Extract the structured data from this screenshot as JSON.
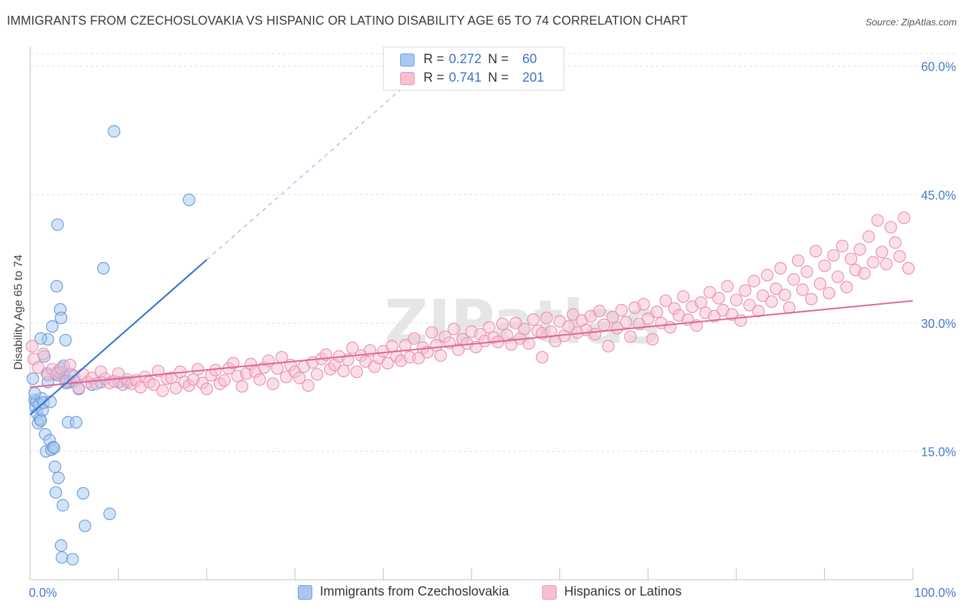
{
  "title": "IMMIGRANTS FROM CZECHOSLOVAKIA VS HISPANIC OR LATINO DISABILITY AGE 65 TO 74 CORRELATION CHART",
  "source": "Source: ZipAtlas.com",
  "watermark": "ZIPatlas",
  "legend": {
    "rows": [
      {
        "r_label": "R =",
        "r_value": "0.272",
        "n_label": "N =",
        "n_value": "60",
        "color": "#a8c8f0",
        "stroke": "#6a9ad8"
      },
      {
        "r_label": "R =",
        "r_value": "0.741",
        "n_label": "N =",
        "n_value": "201",
        "color": "#f8bfd0",
        "stroke": "#e890b0"
      }
    ]
  },
  "bottom_legend": [
    {
      "label": "Immigrants from Czechoslovakia",
      "color": "#a8c8f0",
      "stroke": "#6a9ad8"
    },
    {
      "label": "Hispanics or Latinos",
      "color": "#f8bfd0",
      "stroke": "#e890b0"
    }
  ],
  "chart_data": {
    "type": "scatter",
    "title": "IMMIGRANTS FROM CZECHOSLOVAKIA VS HISPANIC OR LATINO DISABILITY AGE 65 TO 74 CORRELATION CHART",
    "xlabel": "",
    "ylabel": "Disability Age 65 to 74",
    "xlim": [
      0,
      100
    ],
    "ylim": [
      0,
      61.5
    ],
    "x_ticks": [
      {
        "value": 0,
        "label": "0.0%"
      },
      {
        "value": 100,
        "label": "100.0%"
      }
    ],
    "y_ticks": [
      {
        "value": 15,
        "label": "15.0%"
      },
      {
        "value": 30,
        "label": "30.0%"
      },
      {
        "value": 45,
        "label": "45.0%"
      },
      {
        "value": 60,
        "label": "60.0%"
      }
    ],
    "grid": "horizontal dashed",
    "legend_position": "top-center",
    "series": [
      {
        "name": "Immigrants from Czechoslovakia",
        "color": "#a8c8f0",
        "stroke": "#6a9ad8",
        "trend": {
          "x0": 0,
          "y0": 19.3,
          "x1": 20,
          "y1": 37.4,
          "dash_to_x": 45
        },
        "points": [
          [
            0.3,
            23.5
          ],
          [
            0.5,
            21
          ],
          [
            0.6,
            20.2
          ],
          [
            0.7,
            20.8
          ],
          [
            0.8,
            19.4
          ],
          [
            0.9,
            18.3
          ],
          [
            1.0,
            20.5
          ],
          [
            1.1,
            18.8
          ],
          [
            1.2,
            18.6
          ],
          [
            1.3,
            21.2
          ],
          [
            1.4,
            19.8
          ],
          [
            1.5,
            20.7
          ],
          [
            1.6,
            26.1
          ],
          [
            1.7,
            17.0
          ],
          [
            1.8,
            15.0
          ],
          [
            2.0,
            28.1
          ],
          [
            2.0,
            23.1
          ],
          [
            2.2,
            16.3
          ],
          [
            2.3,
            20.8
          ],
          [
            2.4,
            15.2
          ],
          [
            2.5,
            29.6
          ],
          [
            2.6,
            15.5
          ],
          [
            2.7,
            15.4
          ],
          [
            2.8,
            13.2
          ],
          [
            2.9,
            10.2
          ],
          [
            3.0,
            34.3
          ],
          [
            3.1,
            23.9
          ],
          [
            3.1,
            41.5
          ],
          [
            3.2,
            24.4
          ],
          [
            3.2,
            11.9
          ],
          [
            3.3,
            24.2
          ],
          [
            3.4,
            31.6
          ],
          [
            3.5,
            30.6
          ],
          [
            3.5,
            4.0
          ],
          [
            3.6,
            2.6
          ],
          [
            3.7,
            8.7
          ],
          [
            3.8,
            25.0
          ],
          [
            3.9,
            23.7
          ],
          [
            4.0,
            28.0
          ],
          [
            4.1,
            23.0
          ],
          [
            4.3,
            18.4
          ],
          [
            4.5,
            23.1
          ],
          [
            4.8,
            2.4
          ],
          [
            5.0,
            23.2
          ],
          [
            5.2,
            18.4
          ],
          [
            5.5,
            22.3
          ],
          [
            6.0,
            10.1
          ],
          [
            6.2,
            6.3
          ],
          [
            4.6,
            24.0
          ],
          [
            1.2,
            28.2
          ],
          [
            7.0,
            22.8
          ],
          [
            8.0,
            23.1
          ],
          [
            8.3,
            36.4
          ],
          [
            9.0,
            7.7
          ],
          [
            9.5,
            52.4
          ],
          [
            10.0,
            23.1
          ],
          [
            11.0,
            23.1
          ],
          [
            18.0,
            44.4
          ],
          [
            0.5,
            21.8
          ],
          [
            1.9,
            24.1
          ]
        ]
      },
      {
        "name": "Hispanics or Latinos",
        "color": "#f8bfd0",
        "stroke": "#e890b0",
        "trend": {
          "x0": 0,
          "y0": 22.5,
          "x1": 100,
          "y1": 32.6
        },
        "points": [
          [
            0.2,
            27.3
          ],
          [
            0.4,
            25.8
          ],
          [
            0.9,
            24.8
          ],
          [
            1.5,
            26.4
          ],
          [
            2.0,
            23.9
          ],
          [
            2.5,
            24.6
          ],
          [
            3.0,
            24.1
          ],
          [
            3.5,
            24.7
          ],
          [
            4.0,
            23.2
          ],
          [
            4.5,
            25.1
          ],
          [
            5.0,
            23.8
          ],
          [
            5.5,
            22.4
          ],
          [
            6.0,
            24.0
          ],
          [
            6.5,
            23.1
          ],
          [
            7.0,
            23.6
          ],
          [
            7.5,
            22.9
          ],
          [
            8.0,
            24.3
          ],
          [
            8.5,
            23.5
          ],
          [
            9.0,
            23.0
          ],
          [
            9.5,
            23.2
          ],
          [
            10.0,
            24.1
          ],
          [
            10.5,
            22.8
          ],
          [
            11.0,
            23.4
          ],
          [
            11.5,
            22.9
          ],
          [
            12.0,
            23.3
          ],
          [
            12.5,
            22.5
          ],
          [
            13.0,
            23.7
          ],
          [
            13.5,
            23.1
          ],
          [
            14.0,
            22.8
          ],
          [
            14.5,
            24.4
          ],
          [
            15.0,
            22.1
          ],
          [
            15.5,
            23.5
          ],
          [
            16.0,
            23.6
          ],
          [
            16.5,
            22.4
          ],
          [
            17.0,
            24.3
          ],
          [
            17.5,
            23.1
          ],
          [
            18.0,
            22.7
          ],
          [
            18.5,
            23.4
          ],
          [
            19.0,
            24.6
          ],
          [
            19.5,
            23.0
          ],
          [
            20.0,
            22.3
          ],
          [
            20.5,
            23.9
          ],
          [
            21.0,
            24.5
          ],
          [
            21.5,
            22.9
          ],
          [
            22.0,
            23.3
          ],
          [
            22.5,
            24.7
          ],
          [
            23.0,
            25.3
          ],
          [
            23.5,
            23.8
          ],
          [
            24.0,
            22.6
          ],
          [
            24.5,
            24.1
          ],
          [
            25.0,
            25.2
          ],
          [
            25.5,
            24.3
          ],
          [
            26.0,
            23.4
          ],
          [
            26.5,
            24.8
          ],
          [
            27.0,
            25.6
          ],
          [
            27.5,
            22.9
          ],
          [
            28.0,
            24.7
          ],
          [
            28.5,
            26.0
          ],
          [
            29.0,
            23.7
          ],
          [
            29.5,
            25.1
          ],
          [
            30.0,
            24.3
          ],
          [
            30.5,
            23.6
          ],
          [
            31.0,
            24.9
          ],
          [
            31.5,
            22.7
          ],
          [
            32.0,
            25.4
          ],
          [
            32.5,
            24.0
          ],
          [
            33.0,
            25.8
          ],
          [
            33.5,
            26.3
          ],
          [
            34.0,
            24.6
          ],
          [
            34.5,
            25.1
          ],
          [
            35.0,
            26.1
          ],
          [
            35.5,
            24.4
          ],
          [
            36.0,
            25.7
          ],
          [
            36.5,
            27.1
          ],
          [
            37.0,
            24.3
          ],
          [
            37.5,
            26.2
          ],
          [
            38.0,
            25.5
          ],
          [
            38.5,
            26.8
          ],
          [
            39.0,
            24.9
          ],
          [
            39.5,
            25.9
          ],
          [
            40.0,
            26.7
          ],
          [
            40.5,
            25.3
          ],
          [
            41.0,
            27.3
          ],
          [
            41.5,
            26.1
          ],
          [
            42.0,
            25.6
          ],
          [
            42.5,
            27.4
          ],
          [
            43.0,
            26.0
          ],
          [
            43.5,
            28.2
          ],
          [
            44.0,
            25.9
          ],
          [
            44.5,
            27.1
          ],
          [
            45.0,
            26.6
          ],
          [
            45.5,
            28.9
          ],
          [
            46.0,
            27.4
          ],
          [
            46.5,
            26.2
          ],
          [
            47.0,
            28.4
          ],
          [
            47.5,
            27.7
          ],
          [
            48.0,
            29.3
          ],
          [
            48.5,
            26.9
          ],
          [
            49.0,
            28.1
          ],
          [
            49.5,
            27.6
          ],
          [
            50.0,
            29.0
          ],
          [
            50.5,
            27.2
          ],
          [
            51.0,
            28.7
          ],
          [
            51.5,
            27.9
          ],
          [
            52.0,
            29.5
          ],
          [
            52.5,
            28.3
          ],
          [
            53.0,
            27.8
          ],
          [
            53.5,
            29.9
          ],
          [
            54.0,
            28.6
          ],
          [
            54.5,
            27.5
          ],
          [
            55.0,
            30.0
          ],
          [
            55.5,
            28.2
          ],
          [
            56.0,
            29.3
          ],
          [
            56.5,
            27.6
          ],
          [
            57.0,
            30.4
          ],
          [
            57.5,
            29.1
          ],
          [
            58.0,
            28.8
          ],
          [
            58.5,
            30.6
          ],
          [
            59.0,
            29.0
          ],
          [
            59.5,
            27.9
          ],
          [
            60.0,
            30.2
          ],
          [
            60.5,
            28.5
          ],
          [
            61.0,
            29.6
          ],
          [
            61.5,
            31.0
          ],
          [
            62.0,
            28.9
          ],
          [
            62.5,
            30.3
          ],
          [
            63.0,
            29.2
          ],
          [
            63.5,
            30.8
          ],
          [
            64.0,
            28.7
          ],
          [
            64.5,
            31.4
          ],
          [
            65.0,
            29.8
          ],
          [
            65.5,
            27.3
          ],
          [
            66.0,
            30.7
          ],
          [
            66.5,
            29.4
          ],
          [
            67.0,
            31.5
          ],
          [
            67.5,
            30.1
          ],
          [
            68.0,
            28.4
          ],
          [
            68.5,
            31.8
          ],
          [
            69.0,
            29.9
          ],
          [
            69.5,
            32.2
          ],
          [
            70.0,
            30.5
          ],
          [
            70.5,
            28.1
          ],
          [
            71.0,
            31.3
          ],
          [
            71.5,
            30.0
          ],
          [
            72.0,
            32.6
          ],
          [
            72.5,
            29.5
          ],
          [
            73.0,
            31.7
          ],
          [
            73.5,
            30.9
          ],
          [
            74.0,
            33.1
          ],
          [
            74.5,
            30.4
          ],
          [
            75.0,
            31.9
          ],
          [
            75.5,
            29.7
          ],
          [
            76.0,
            32.4
          ],
          [
            76.5,
            31.2
          ],
          [
            77.0,
            33.6
          ],
          [
            77.5,
            30.8
          ],
          [
            78.0,
            32.9
          ],
          [
            78.5,
            31.5
          ],
          [
            79.0,
            34.3
          ],
          [
            79.5,
            31.0
          ],
          [
            80.0,
            32.7
          ],
          [
            80.5,
            30.3
          ],
          [
            81.0,
            33.8
          ],
          [
            81.5,
            32.1
          ],
          [
            82.0,
            34.9
          ],
          [
            82.5,
            31.4
          ],
          [
            83.0,
            33.2
          ],
          [
            83.5,
            35.6
          ],
          [
            84.0,
            32.5
          ],
          [
            84.5,
            34.0
          ],
          [
            85.0,
            36.4
          ],
          [
            85.5,
            33.3
          ],
          [
            86.0,
            31.8
          ],
          [
            86.5,
            35.1
          ],
          [
            87.0,
            37.3
          ],
          [
            87.5,
            33.9
          ],
          [
            88.0,
            36.0
          ],
          [
            88.5,
            32.8
          ],
          [
            89.0,
            38.4
          ],
          [
            89.5,
            34.6
          ],
          [
            90.0,
            36.7
          ],
          [
            90.5,
            33.5
          ],
          [
            91.0,
            37.9
          ],
          [
            91.5,
            35.4
          ],
          [
            92.0,
            39.0
          ],
          [
            92.5,
            34.2
          ],
          [
            93.0,
            37.5
          ],
          [
            93.5,
            36.2
          ],
          [
            94.0,
            38.6
          ],
          [
            94.5,
            35.8
          ],
          [
            95.0,
            40.1
          ],
          [
            95.5,
            37.1
          ],
          [
            96.0,
            42.0
          ],
          [
            96.5,
            38.3
          ],
          [
            97.0,
            36.9
          ],
          [
            97.5,
            41.2
          ],
          [
            98.0,
            39.4
          ],
          [
            98.5,
            37.8
          ],
          [
            99.0,
            42.3
          ],
          [
            99.5,
            36.4
          ],
          [
            58.0,
            26.0
          ]
        ]
      }
    ]
  }
}
